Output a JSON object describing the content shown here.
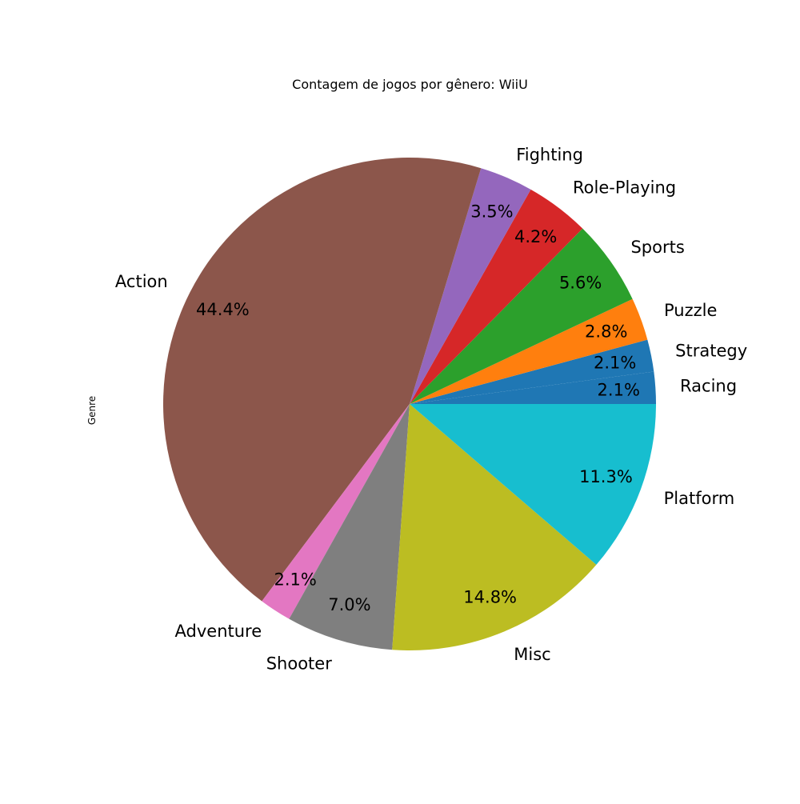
{
  "chart_data": {
    "type": "pie",
    "title": "Contagem de jogos por gênero: WiiU",
    "ylabel": "Genre",
    "categories": [
      "Racing",
      "Strategy",
      "Puzzle",
      "Sports",
      "Role-Playing",
      "Fighting",
      "Action",
      "Adventure",
      "Shooter",
      "Misc",
      "Platform"
    ],
    "values": [
      2.1,
      2.1,
      2.8,
      5.6,
      4.2,
      3.5,
      44.4,
      2.1,
      7.0,
      14.8,
      11.3
    ],
    "value_labels": [
      "2.1%",
      "2.1%",
      "2.8%",
      "5.6%",
      "4.2%",
      "3.5%",
      "44.4%",
      "2.1%",
      "7.0%",
      "14.8%",
      "11.3%"
    ],
    "colors": [
      "#1f77b4",
      "#1f77b4",
      "#ff7f0e",
      "#2ca02c",
      "#d62728",
      "#9467bd",
      "#8c564b",
      "#e377c2",
      "#7f7f7f",
      "#bcbd22",
      "#17becf"
    ],
    "start_angle_deg": 0,
    "direction": "counterclockwise",
    "legend": "none",
    "grid": false
  }
}
